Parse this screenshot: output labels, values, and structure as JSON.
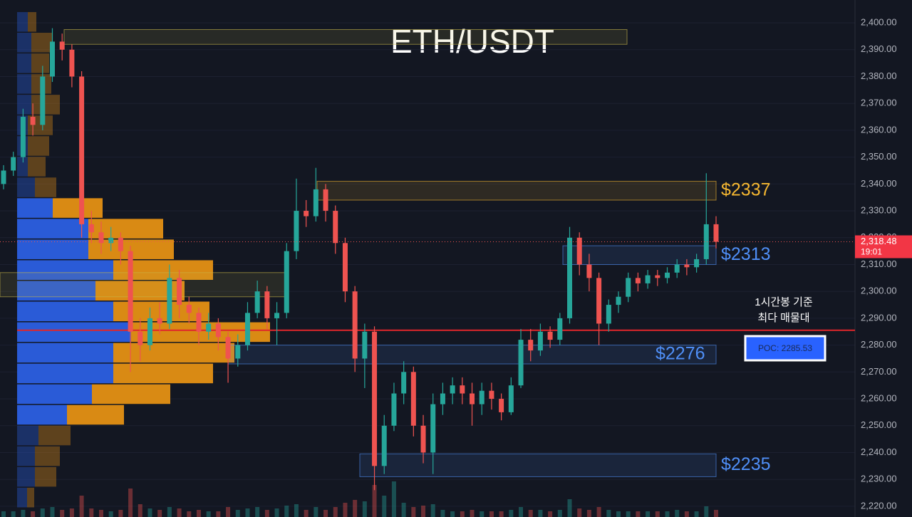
{
  "chart_data": {
    "type": "candlestick",
    "title": "ETH/USDT",
    "ylim": [
      2216.0,
      2408.5
    ],
    "yticks": [
      {
        "value": 2220,
        "label": "2,220.00"
      },
      {
        "value": 2230,
        "label": "2,230.00"
      },
      {
        "value": 2240,
        "label": "2,240.00"
      },
      {
        "value": 2250,
        "label": "2,250.00"
      },
      {
        "value": 2260,
        "label": "2,260.00"
      },
      {
        "value": 2270,
        "label": "2,270.00"
      },
      {
        "value": 2280,
        "label": "2,280.00"
      },
      {
        "value": 2290,
        "label": "2,290.00"
      },
      {
        "value": 2300,
        "label": "2,300.00"
      },
      {
        "value": 2310,
        "label": "2,310.00"
      },
      {
        "value": 2320,
        "label": "2,320.00"
      },
      {
        "value": 2330,
        "label": "2,330.00"
      },
      {
        "value": 2340,
        "label": "2,340.00"
      },
      {
        "value": 2350,
        "label": "2,350.00"
      },
      {
        "value": 2360,
        "label": "2,360.00"
      },
      {
        "value": 2370,
        "label": "2,370.00"
      },
      {
        "value": 2380,
        "label": "2,380.00"
      },
      {
        "value": 2390,
        "label": "2,390.00"
      },
      {
        "value": 2400,
        "label": "2,400.00"
      }
    ],
    "up_color": "#26a69a",
    "down_color": "#ef5350",
    "ohlc": [
      [
        2340,
        2347,
        2338,
        2345
      ],
      [
        2345,
        2352,
        2343,
        2350
      ],
      [
        2350,
        2368,
        2348,
        2365
      ],
      [
        2365,
        2370,
        2358,
        2362
      ],
      [
        2362,
        2384,
        2360,
        2380
      ],
      [
        2380,
        2398,
        2378,
        2393
      ],
      [
        2393,
        2396,
        2386,
        2390
      ],
      [
        2390,
        2392,
        2376,
        2380
      ],
      [
        2380,
        2382,
        2320,
        2325
      ],
      [
        2325,
        2330,
        2318,
        2322
      ],
      [
        2322,
        2326,
        2314,
        2318
      ],
      [
        2318,
        2324,
        2315,
        2320
      ],
      [
        2320,
        2322,
        2310,
        2315
      ],
      [
        2315,
        2317,
        2270,
        2285
      ],
      [
        2285,
        2290,
        2274,
        2280
      ],
      [
        2280,
        2294,
        2278,
        2290
      ],
      [
        2290,
        2296,
        2284,
        2288
      ],
      [
        2288,
        2310,
        2286,
        2305
      ],
      [
        2305,
        2308,
        2290,
        2295
      ],
      [
        2295,
        2298,
        2288,
        2292
      ],
      [
        2292,
        2294,
        2280,
        2285
      ],
      [
        2285,
        2292,
        2282,
        2288
      ],
      [
        2288,
        2290,
        2278,
        2283
      ],
      [
        2283,
        2285,
        2266,
        2275
      ],
      [
        2275,
        2284,
        2272,
        2280
      ],
      [
        2280,
        2296,
        2278,
        2292
      ],
      [
        2292,
        2304,
        2290,
        2300
      ],
      [
        2300,
        2302,
        2286,
        2290
      ],
      [
        2290,
        2296,
        2280,
        2292
      ],
      [
        2292,
        2318,
        2290,
        2315
      ],
      [
        2315,
        2342,
        2312,
        2330
      ],
      [
        2330,
        2334,
        2324,
        2328
      ],
      [
        2328,
        2346,
        2326,
        2338
      ],
      [
        2338,
        2340,
        2326,
        2330
      ],
      [
        2330,
        2332,
        2314,
        2318
      ],
      [
        2318,
        2320,
        2296,
        2300
      ],
      [
        2300,
        2302,
        2270,
        2275
      ],
      [
        2275,
        2288,
        2264,
        2285
      ],
      [
        2285,
        2287,
        2226,
        2235
      ],
      [
        2235,
        2254,
        2232,
        2250
      ],
      [
        2250,
        2266,
        2248,
        2262
      ],
      [
        2262,
        2274,
        2258,
        2270
      ],
      [
        2270,
        2272,
        2246,
        2250
      ],
      [
        2250,
        2254,
        2236,
        2240
      ],
      [
        2240,
        2262,
        2232,
        2258
      ],
      [
        2258,
        2266,
        2254,
        2262
      ],
      [
        2262,
        2268,
        2258,
        2265
      ],
      [
        2265,
        2268,
        2258,
        2262
      ],
      [
        2262,
        2266,
        2250,
        2258
      ],
      [
        2258,
        2266,
        2254,
        2263
      ],
      [
        2263,
        2266,
        2256,
        2260
      ],
      [
        2260,
        2262,
        2252,
        2255
      ],
      [
        2255,
        2268,
        2254,
        2265
      ],
      [
        2265,
        2286,
        2264,
        2282
      ],
      [
        2282,
        2286,
        2274,
        2278
      ],
      [
        2278,
        2288,
        2276,
        2285
      ],
      [
        2285,
        2287,
        2279,
        2282
      ],
      [
        2282,
        2292,
        2280,
        2290
      ],
      [
        2290,
        2324,
        2288,
        2320
      ],
      [
        2320,
        2322,
        2306,
        2310
      ],
      [
        2310,
        2314,
        2300,
        2305
      ],
      [
        2305,
        2307,
        2280,
        2288
      ],
      [
        2288,
        2297,
        2285,
        2295
      ],
      [
        2295,
        2300,
        2292,
        2298
      ],
      [
        2298,
        2307,
        2296,
        2305
      ],
      [
        2305,
        2307,
        2300,
        2303
      ],
      [
        2303,
        2308,
        2301,
        2306
      ],
      [
        2306,
        2308,
        2302,
        2305
      ],
      [
        2305,
        2309,
        2303,
        2307
      ],
      [
        2307,
        2312,
        2305,
        2310
      ],
      [
        2310,
        2312,
        2306,
        2309
      ],
      [
        2309,
        2314,
        2307,
        2312
      ],
      [
        2312,
        2344,
        2310,
        2325
      ],
      [
        2325,
        2328,
        2316,
        2318.48
      ]
    ],
    "volume": [
      8,
      8,
      10,
      8,
      12,
      14,
      10,
      12,
      30,
      12,
      10,
      8,
      10,
      40,
      18,
      12,
      10,
      14,
      12,
      8,
      10,
      8,
      8,
      14,
      10,
      12,
      14,
      10,
      12,
      16,
      18,
      10,
      14,
      10,
      14,
      20,
      24,
      22,
      45,
      30,
      50,
      20,
      14,
      16,
      18,
      10,
      8,
      8,
      10,
      8,
      8,
      8,
      10,
      14,
      10,
      10,
      8,
      10,
      25,
      12,
      10,
      14,
      10,
      8,
      8,
      8,
      8,
      8,
      8,
      10,
      8,
      8,
      15,
      10
    ],
    "volume_profile": {
      "bins": [
        2404,
        2396.3,
        2388.6,
        2380.9,
        2373.2,
        2365.5,
        2357.8,
        2350.1,
        2342.4,
        2334.7,
        2327,
        2319.3,
        2311.6,
        2303.9,
        2296.2,
        2288.5,
        2280.8,
        2273.1,
        2265.4,
        2257.7,
        2250,
        2242.3,
        2234.6,
        2226.9,
        2219.2
      ],
      "buy": [
        15,
        20,
        20,
        20,
        20,
        15,
        15,
        15,
        25,
        50,
        100,
        100,
        135,
        110,
        135,
        160,
        135,
        135,
        105,
        70,
        30,
        25,
        25,
        14
      ],
      "sell": [
        12,
        30,
        25,
        28,
        40,
        35,
        30,
        25,
        30,
        70,
        105,
        120,
        140,
        125,
        135,
        195,
        170,
        140,
        110,
        80,
        45,
        35,
        30,
        10
      ],
      "buy_color": "#2a5bd7",
      "sell_color": "#d98a14",
      "value_area": [
        2250,
        2334.7
      ]
    },
    "zones": [
      {
        "low": 2392,
        "high": 2397.5
      },
      {
        "low": 2334,
        "high": 2341,
        "label": "$2337",
        "color": "#f5b731"
      },
      {
        "low": 2310,
        "high": 2317,
        "label": "$2313",
        "color": "#4f8ff7"
      },
      {
        "low": 2298,
        "high": 2307
      },
      {
        "low": 2273,
        "high": 2280,
        "label": "$2276",
        "color": "#4f8ff7"
      },
      {
        "low": 2231,
        "high": 2239.5,
        "label": "$2235",
        "color": "#4f8ff7"
      }
    ],
    "poc": {
      "value": 2285.53,
      "label": "POC: 2285.53"
    },
    "annotation": [
      "1시간봉 기준",
      "최다 매물대"
    ],
    "last_price": {
      "value": 2318.48,
      "label": "2,318.48"
    },
    "countdown": "19:01"
  }
}
